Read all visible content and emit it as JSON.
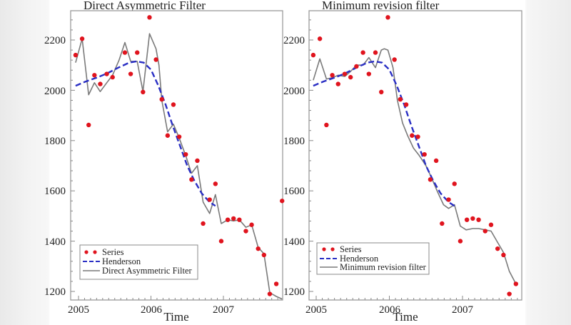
{
  "chart_data": [
    {
      "type": "line",
      "title": "Direct Asymmetric Filter",
      "xlabel": "Time",
      "ylabel": "",
      "xlim": [
        2004.96,
        2007.83
      ],
      "ylim": [
        1160,
        2315
      ],
      "x_ticks": [
        2005,
        2006,
        2007
      ],
      "y_ticks": [
        1200,
        1400,
        1600,
        1800,
        2000,
        2200
      ],
      "grid": false,
      "legend_position": "lower left",
      "legend": [
        "Series",
        "Henderson",
        "Direct Asymmetric Filter"
      ],
      "series": [
        {
          "name": "Series",
          "style": "markers",
          "color": "#e0141e",
          "x": [
            2004.96,
            2005.05,
            2005.14,
            2005.22,
            2005.3,
            2005.39,
            2005.47,
            2005.64,
            2005.72,
            2005.81,
            2005.89,
            2005.98,
            2006.07,
            2006.15,
            2006.23,
            2006.31,
            2006.39,
            2006.48,
            2006.56,
            2006.64,
            2006.72,
            2006.81,
            2006.89,
            2006.97,
            2007.06,
            2007.14,
            2007.22,
            2007.31,
            2007.39,
            2007.48,
            2007.56,
            2007.64,
            2007.73,
            2007.81
          ],
          "values": [
            2140,
            2205,
            1862,
            2060,
            2025,
            2065,
            2052,
            2150,
            2065,
            2150,
            1993,
            2290,
            2122,
            1964,
            1820,
            1943,
            1815,
            1745,
            1645,
            1720,
            1470,
            1565,
            1628,
            1400,
            1485,
            1490,
            1485,
            1440,
            1465,
            1370,
            1345,
            1190,
            1230,
            1560
          ]
        },
        {
          "name": "Henderson",
          "style": "dashed",
          "color": "#2a2fc4",
          "x": [
            2004.96,
            2005.1,
            2005.25,
            2005.4,
            2005.55,
            2005.7,
            2005.8,
            2005.9,
            2006.0,
            2006.1,
            2006.2,
            2006.3,
            2006.4,
            2006.5,
            2006.6,
            2006.7,
            2006.81,
            2006.89
          ],
          "values": [
            2018,
            2035,
            2050,
            2068,
            2090,
            2110,
            2115,
            2110,
            2082,
            2020,
            1945,
            1860,
            1780,
            1700,
            1640,
            1590,
            1555,
            1540
          ]
        },
        {
          "name": "Direct Asymmetric Filter",
          "style": "solid",
          "color": "#7a7a7a",
          "x": [
            2004.96,
            2005.05,
            2005.14,
            2005.22,
            2005.3,
            2005.39,
            2005.47,
            2005.56,
            2005.64,
            2005.72,
            2005.81,
            2005.89,
            2005.98,
            2006.07,
            2006.11,
            2006.15,
            2006.23,
            2006.31,
            2006.39,
            2006.48,
            2006.56,
            2006.64,
            2006.72,
            2006.81,
            2006.89,
            2006.97,
            2007.06,
            2007.14,
            2007.22,
            2007.31,
            2007.39,
            2007.48,
            2007.56,
            2007.64,
            2007.73,
            2007.81
          ],
          "values": [
            2110,
            2205,
            1982,
            2030,
            1995,
            2030,
            2060,
            2120,
            2190,
            2115,
            2115,
            1995,
            2225,
            2165,
            2100,
            1960,
            1835,
            1865,
            1810,
            1740,
            1670,
            1700,
            1555,
            1510,
            1585,
            1470,
            1485,
            1480,
            1485,
            1455,
            1465,
            1375,
            1350,
            1195,
            1180,
            1170
          ]
        }
      ]
    },
    {
      "type": "line",
      "title": "Minimum revision filter",
      "xlabel": "Time",
      "ylabel": "",
      "xlim": [
        2004.96,
        2007.83
      ],
      "ylim": [
        1160,
        2315
      ],
      "x_ticks": [
        2005,
        2006,
        2007
      ],
      "y_ticks": [
        1200,
        1400,
        1600,
        1800,
        2000,
        2200
      ],
      "grid": false,
      "legend_position": "lower left",
      "legend": [
        "Series",
        "Henderson",
        "Minimum revision filter"
      ],
      "series": [
        {
          "name": "Series",
          "style": "markers",
          "color": "#e0141e",
          "x": [
            2004.96,
            2005.05,
            2005.14,
            2005.22,
            2005.3,
            2005.39,
            2005.47,
            2005.55,
            2005.64,
            2005.72,
            2005.81,
            2005.89,
            2005.98,
            2006.07,
            2006.15,
            2006.23,
            2006.31,
            2006.39,
            2006.48,
            2006.56,
            2006.64,
            2006.72,
            2006.81,
            2006.89,
            2006.97,
            2007.06,
            2007.14,
            2007.22,
            2007.31,
            2007.39,
            2007.48,
            2007.56,
            2007.64,
            2007.73
          ],
          "values": [
            2140,
            2205,
            1862,
            2060,
            2025,
            2065,
            2052,
            2095,
            2150,
            2065,
            2150,
            1993,
            2290,
            2122,
            1964,
            1943,
            1820,
            1815,
            1745,
            1645,
            1720,
            1470,
            1565,
            1628,
            1400,
            1485,
            1490,
            1485,
            1440,
            1465,
            1370,
            1345,
            1190,
            1230
          ]
        },
        {
          "name": "Henderson",
          "style": "dashed",
          "color": "#2a2fc4",
          "x": [
            2004.96,
            2005.1,
            2005.25,
            2005.4,
            2005.55,
            2005.7,
            2005.8,
            2005.9,
            2006.0,
            2006.1,
            2006.2,
            2006.3,
            2006.4,
            2006.5,
            2006.6,
            2006.7,
            2006.81,
            2006.89
          ],
          "values": [
            2018,
            2035,
            2050,
            2068,
            2090,
            2110,
            2115,
            2110,
            2082,
            2020,
            1945,
            1860,
            1780,
            1700,
            1640,
            1590,
            1555,
            1540
          ]
        },
        {
          "name": "Minimum revision filter",
          "style": "solid",
          "color": "#7a7a7a",
          "x": [
            2004.96,
            2005.05,
            2005.14,
            2005.22,
            2005.3,
            2005.39,
            2005.47,
            2005.55,
            2005.64,
            2005.72,
            2005.81,
            2005.89,
            2005.93,
            2005.98,
            2006.05,
            2006.11,
            2006.18,
            2006.25,
            2006.33,
            2006.41,
            2006.5,
            2006.58,
            2006.66,
            2006.74,
            2006.81,
            2006.89,
            2006.97,
            2007.05,
            2007.14,
            2007.22,
            2007.31,
            2007.39,
            2007.48,
            2007.56,
            2007.64,
            2007.73
          ],
          "values": [
            2040,
            2125,
            2045,
            2050,
            2060,
            2055,
            2075,
            2100,
            2100,
            2130,
            2090,
            2160,
            2165,
            2160,
            2090,
            1960,
            1870,
            1820,
            1770,
            1740,
            1700,
            1650,
            1595,
            1545,
            1530,
            1545,
            1460,
            1445,
            1450,
            1450,
            1445,
            1440,
            1395,
            1355,
            1280,
            1230
          ]
        }
      ]
    }
  ],
  "panels": [
    {
      "title": "Direct Asymmetric Filter",
      "xlabel": "Time",
      "legend": [
        {
          "label": "Series",
          "icon": "marker-dots-icon"
        },
        {
          "label": "Henderson",
          "icon": "dashed-line-icon"
        },
        {
          "label": "Direct Asymmetric Filter",
          "icon": "solid-line-icon"
        }
      ],
      "x_tick_labels": [
        "2005",
        "2006",
        "2007"
      ],
      "y_tick_labels": [
        "1200",
        "1400",
        "1600",
        "1800",
        "2000",
        "2200"
      ]
    },
    {
      "title": "Minimum revision filter",
      "xlabel": "Time",
      "legend": [
        {
          "label": "Series",
          "icon": "marker-dots-icon"
        },
        {
          "label": "Henderson",
          "icon": "dashed-line-icon"
        },
        {
          "label": "Minimum revision filter",
          "icon": "solid-line-icon"
        }
      ],
      "x_tick_labels": [
        "2005",
        "2006",
        "2007"
      ],
      "y_tick_labels": [
        "1200",
        "1400",
        "1600",
        "1800",
        "2000",
        "2200"
      ]
    }
  ],
  "colors": {
    "series": "#e0141e",
    "henderson": "#2a2fc4",
    "filter": "#7a7a7a",
    "frame": "#9a9a9a"
  }
}
